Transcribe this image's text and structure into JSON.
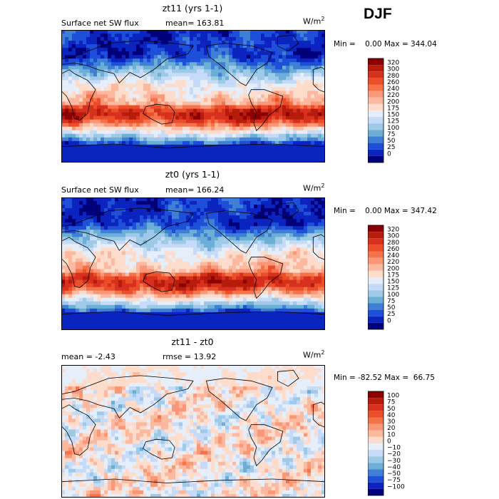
{
  "season": "DJF",
  "units_base": "W/m",
  "units_exp": "2",
  "panels": [
    {
      "title": "zt11 (yrs 1-1)",
      "left_label": "Surface net SW flux",
      "center_label": "mean= 163.81",
      "minmax": "Min =    0.00 Max = 344.04"
    },
    {
      "title": "zt0 (yrs 1-1)",
      "left_label": "Surface net SW flux",
      "center_label": "mean= 166.24",
      "minmax": "Min =    0.00 Max = 347.42"
    },
    {
      "title": "zt11 - zt0",
      "left_label": "mean =  -2.43",
      "center_label": "rmse =  13.92",
      "minmax": "Min = -82.52 Max =  66.75"
    }
  ],
  "chart_data": [
    {
      "type": "heatmap",
      "title": "zt11 (yrs 1-1)",
      "field": "Surface net SW flux",
      "units": "W/m^2",
      "mean": 163.81,
      "min": 0.0,
      "max": 344.04,
      "colorbar_levels": [
        "320",
        "300",
        "280",
        "260",
        "240",
        "220",
        "200",
        "175",
        "150",
        "125",
        "100",
        "75",
        "50",
        "25",
        "0"
      ],
      "colors": [
        "#8b0000",
        "#b71b0c",
        "#d7301f",
        "#ea4f2a",
        "#f4734a",
        "#f99777",
        "#fcb9a0",
        "#fddccc",
        "#e6eefa",
        "#c6dbf7",
        "#9ecae8",
        "#6baed6",
        "#3f7fd6",
        "#1e4fd8",
        "#0b24c0",
        "#00007a"
      ]
    },
    {
      "type": "heatmap",
      "title": "zt0 (yrs 1-1)",
      "field": "Surface net SW flux",
      "units": "W/m^2",
      "mean": 166.24,
      "min": 0.0,
      "max": 347.42,
      "colorbar_levels": [
        "320",
        "300",
        "280",
        "260",
        "240",
        "220",
        "200",
        "175",
        "150",
        "125",
        "100",
        "75",
        "50",
        "25",
        "0"
      ],
      "colors": [
        "#8b0000",
        "#b71b0c",
        "#d7301f",
        "#ea4f2a",
        "#f4734a",
        "#f99777",
        "#fcb9a0",
        "#fddccc",
        "#e6eefa",
        "#c6dbf7",
        "#9ecae8",
        "#6baed6",
        "#3f7fd6",
        "#1e4fd8",
        "#0b24c0",
        "#00007a"
      ]
    },
    {
      "type": "heatmap",
      "title": "zt11 - zt0",
      "field": "difference",
      "units": "W/m^2",
      "mean": -2.43,
      "rmse": 13.92,
      "min": -82.52,
      "max": 66.75,
      "colorbar_levels": [
        "100",
        "75",
        "50",
        "40",
        "30",
        "20",
        "10",
        "0",
        "−10",
        "−20",
        "−30",
        "−40",
        "−50",
        "−75",
        "−100"
      ],
      "colors": [
        "#8b0000",
        "#b71b0c",
        "#d7301f",
        "#ea4f2a",
        "#f4734a",
        "#f99777",
        "#fcb9a0",
        "#fddccc",
        "#e6eefa",
        "#c6dbf7",
        "#9ecae8",
        "#6baed6",
        "#3f7fd6",
        "#1e4fd8",
        "#0b24c0",
        "#00007a"
      ]
    }
  ]
}
